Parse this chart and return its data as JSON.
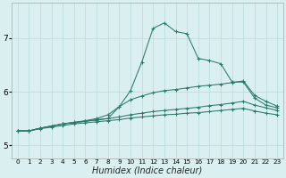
{
  "xlabel": "Humidex (Indice chaleur)",
  "bg_color": "#daf0f0",
  "grid_color": "#b8dada",
  "line_color": "#2a7a6a",
  "x_labels": [
    "0",
    "1",
    "2",
    "3",
    "4",
    "5",
    "6",
    "7",
    "8",
    "9",
    "10",
    "11",
    "12",
    "13",
    "14",
    "15",
    "16",
    "17",
    "18",
    "19",
    "20",
    "21",
    "22",
    "23"
  ],
  "ylim": [
    4.75,
    7.65
  ],
  "yticks": [
    5,
    6,
    7
  ],
  "lines": [
    [
      5.27,
      5.27,
      5.32,
      5.36,
      5.4,
      5.43,
      5.45,
      5.47,
      5.5,
      5.72,
      6.02,
      6.55,
      7.18,
      7.28,
      7.12,
      7.08,
      6.62,
      6.58,
      6.52,
      6.18,
      6.18,
      5.88,
      5.75,
      5.7
    ],
    [
      5.27,
      5.27,
      5.32,
      5.36,
      5.4,
      5.43,
      5.46,
      5.5,
      5.57,
      5.72,
      5.85,
      5.92,
      5.98,
      6.02,
      6.04,
      6.07,
      6.1,
      6.12,
      6.14,
      6.17,
      6.2,
      5.93,
      5.82,
      5.73
    ],
    [
      5.27,
      5.27,
      5.32,
      5.36,
      5.4,
      5.42,
      5.45,
      5.48,
      5.5,
      5.53,
      5.57,
      5.6,
      5.63,
      5.65,
      5.67,
      5.69,
      5.71,
      5.74,
      5.76,
      5.79,
      5.82,
      5.75,
      5.7,
      5.65
    ],
    [
      5.27,
      5.27,
      5.31,
      5.34,
      5.37,
      5.4,
      5.42,
      5.44,
      5.46,
      5.48,
      5.51,
      5.53,
      5.55,
      5.57,
      5.58,
      5.6,
      5.61,
      5.63,
      5.65,
      5.67,
      5.69,
      5.64,
      5.6,
      5.57
    ]
  ],
  "xlabel_fontsize": 7,
  "ytick_fontsize": 6.5,
  "xtick_fontsize": 5.2
}
